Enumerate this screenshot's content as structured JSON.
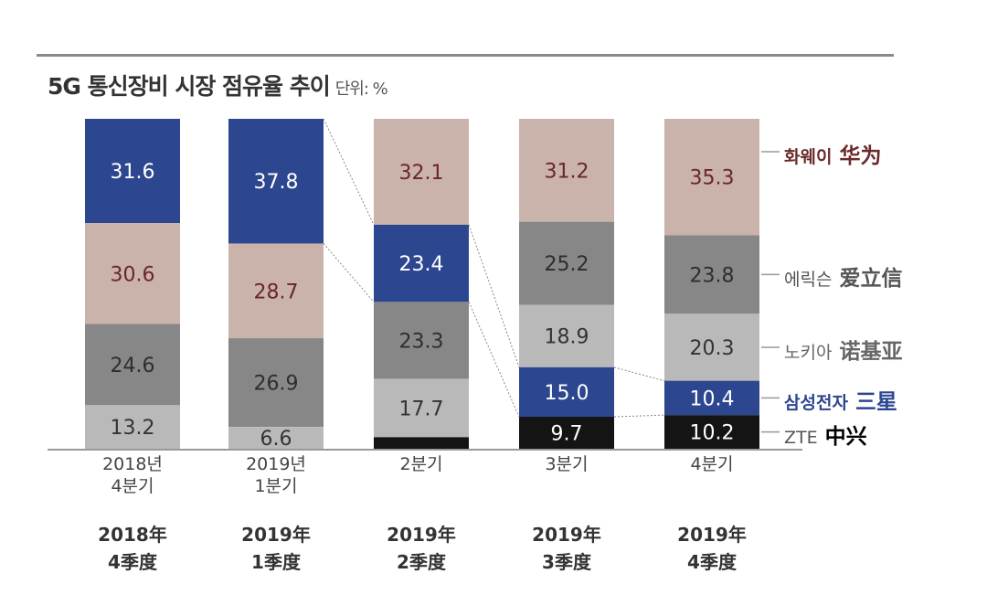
{
  "chart_data": {
    "type": "bar",
    "stacked": true,
    "title": "5G 통신장비 시장 점유율 추이",
    "unit": "단위: %",
    "ylim": [
      0,
      100
    ],
    "categories": [
      {
        "kr": [
          "2018년",
          "4분기"
        ],
        "cn": [
          "2018年",
          "4季度"
        ]
      },
      {
        "kr": [
          "2019년",
          "1분기"
        ],
        "cn": [
          "2019年",
          "1季度"
        ]
      },
      {
        "kr": [
          "2분기"
        ],
        "cn": [
          "2019年",
          "2季度"
        ]
      },
      {
        "kr": [
          "3분기"
        ],
        "cn": [
          "2019年",
          "3季度"
        ]
      },
      {
        "kr": [
          "4분기"
        ],
        "cn": [
          "2019年",
          "4季度"
        ]
      }
    ],
    "series": [
      {
        "name": "화웨이",
        "name_cn": "华为",
        "color": "#c9b3ab",
        "label_color": "#6b2626",
        "legend_color": "#6b2a2a",
        "values": [
          30.6,
          28.7,
          32.1,
          31.2,
          35.3
        ]
      },
      {
        "name": "에릭슨",
        "name_cn": "爱立信",
        "color": "#878787",
        "label_color": "#2e2e2e",
        "legend_color": "#555555",
        "values": [
          24.6,
          26.9,
          23.3,
          25.2,
          23.8
        ]
      },
      {
        "name": "노키아",
        "name_cn": "诺基亚",
        "color": "#b9b9b9",
        "label_color": "#333333",
        "legend_color": "#666666",
        "values": [
          13.2,
          6.6,
          17.7,
          18.9,
          20.3
        ]
      },
      {
        "name": "삼성전자",
        "name_cn": "三星",
        "color": "#2d4690",
        "label_color": "#ffffff",
        "legend_color": "#2d4690",
        "values": [
          31.6,
          37.8,
          23.4,
          15.0,
          10.4
        ]
      },
      {
        "name": "ZTE",
        "name_cn": "中兴",
        "color": "#141414",
        "label_color": "#ffffff",
        "legend_color": "#555555",
        "legend_cn_color": "#000000",
        "values": [
          0,
          0,
          3.5,
          9.7,
          10.2
        ]
      }
    ],
    "stack_order": [
      [
        "삼성전자",
        "화웨이",
        "에릭슨",
        "노키아",
        "ZTE"
      ],
      [
        "삼성전자",
        "화웨이",
        "에릭슨",
        "노키아",
        "ZTE"
      ],
      [
        "화웨이",
        "삼성전자",
        "에릭슨",
        "노키아",
        "ZTE"
      ],
      [
        "화웨이",
        "에릭슨",
        "노키아",
        "삼성전자",
        "ZTE"
      ],
      [
        "화웨이",
        "에릭슨",
        "노키아",
        "삼성전자",
        "ZTE"
      ]
    ],
    "unlabeled": [
      [
        2,
        "ZTE"
      ]
    ],
    "connectors_series": "삼성전자",
    "grid": false,
    "legend": "right"
  }
}
